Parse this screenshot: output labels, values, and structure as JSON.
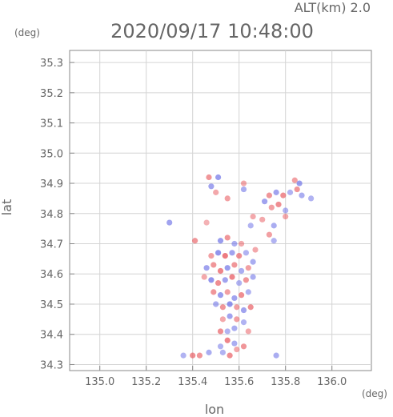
{
  "header": {
    "altitude": "ALT(km) 2.0",
    "datetime": "2020/09/17 10:48:00",
    "y_unit": "(deg)",
    "x_unit": "(deg)"
  },
  "chart_data": {
    "type": "scatter",
    "title": "2020/09/17 10:48:00",
    "xlabel": "lon",
    "ylabel": "lat",
    "xlim": [
      134.87,
      136.17
    ],
    "ylim": [
      34.28,
      35.34
    ],
    "xticks": [
      135.0,
      135.2,
      135.4,
      135.6,
      135.8,
      136.0
    ],
    "yticks": [
      34.3,
      34.4,
      34.5,
      34.6,
      34.7,
      34.8,
      34.9,
      35.0,
      35.1,
      35.2,
      35.3
    ],
    "xtick_labels": [
      "135.0",
      "135.2",
      "135.4",
      "135.6",
      "135.8",
      "136.0"
    ],
    "ytick_labels": [
      "34.3",
      "34.4",
      "34.5",
      "34.6",
      "34.7",
      "34.8",
      "34.9",
      "35.0",
      "35.1",
      "35.2",
      "35.3"
    ],
    "grid": true,
    "colors": {
      "positive": "#e8585e",
      "negative": "#6a6ee6",
      "frame": "#888888"
    },
    "series": [
      {
        "values": [
          [
            135.47,
            34.92,
            0.5
          ],
          [
            135.51,
            34.92,
            -0.6
          ],
          [
            135.62,
            34.9,
            0.3
          ],
          [
            135.62,
            34.88,
            -0.4
          ],
          [
            135.5,
            34.87,
            0.3
          ],
          [
            135.48,
            34.89,
            -0.5
          ],
          [
            135.55,
            34.85,
            0.4
          ],
          [
            135.73,
            34.86,
            0.5
          ],
          [
            135.76,
            34.87,
            -0.5
          ],
          [
            135.79,
            34.86,
            0.6
          ],
          [
            135.82,
            34.87,
            -0.3
          ],
          [
            135.84,
            34.91,
            0.4
          ],
          [
            135.86,
            34.9,
            -0.6
          ],
          [
            135.85,
            34.88,
            0.5
          ],
          [
            135.87,
            34.86,
            -0.4
          ],
          [
            135.71,
            34.84,
            -0.5
          ],
          [
            135.74,
            34.82,
            0.4
          ],
          [
            135.77,
            34.83,
            0.6
          ],
          [
            135.8,
            34.81,
            -0.3
          ],
          [
            135.91,
            34.85,
            -0.3
          ],
          [
            135.7,
            34.78,
            0.3
          ],
          [
            135.75,
            34.76,
            -0.4
          ],
          [
            135.8,
            34.79,
            0.3
          ],
          [
            135.73,
            34.73,
            0.4
          ],
          [
            135.75,
            34.71,
            -0.3
          ],
          [
            135.66,
            34.79,
            0.3
          ],
          [
            135.65,
            34.76,
            -0.3
          ],
          [
            135.46,
            34.77,
            0.2
          ],
          [
            135.3,
            34.77,
            -0.5
          ],
          [
            135.41,
            34.71,
            0.5
          ],
          [
            135.52,
            34.71,
            -0.6
          ],
          [
            135.55,
            34.72,
            0.5
          ],
          [
            135.58,
            34.7,
            -0.4
          ],
          [
            135.61,
            34.7,
            0.3
          ],
          [
            135.48,
            34.66,
            0.4
          ],
          [
            135.51,
            34.67,
            -0.7
          ],
          [
            135.54,
            34.66,
            0.8
          ],
          [
            135.57,
            34.67,
            -0.5
          ],
          [
            135.6,
            34.66,
            0.6
          ],
          [
            135.63,
            34.67,
            -0.3
          ],
          [
            135.67,
            34.68,
            0.3
          ],
          [
            135.66,
            34.64,
            -0.4
          ],
          [
            135.46,
            34.62,
            -0.5
          ],
          [
            135.49,
            34.63,
            0.5
          ],
          [
            135.52,
            34.61,
            0.7
          ],
          [
            135.55,
            34.62,
            -0.6
          ],
          [
            135.58,
            34.63,
            0.5
          ],
          [
            135.61,
            34.61,
            -0.4
          ],
          [
            135.64,
            34.62,
            0.4
          ],
          [
            135.45,
            34.59,
            0.3
          ],
          [
            135.48,
            34.58,
            -0.7
          ],
          [
            135.51,
            34.57,
            0.6
          ],
          [
            135.54,
            34.58,
            -0.5
          ],
          [
            135.57,
            34.59,
            0.7
          ],
          [
            135.6,
            34.57,
            -0.3
          ],
          [
            135.63,
            34.58,
            0.5
          ],
          [
            135.66,
            34.59,
            -0.4
          ],
          [
            135.49,
            34.54,
            0.5
          ],
          [
            135.52,
            34.53,
            -0.6
          ],
          [
            135.55,
            34.54,
            0.4
          ],
          [
            135.58,
            34.52,
            -0.5
          ],
          [
            135.61,
            34.53,
            0.6
          ],
          [
            135.64,
            34.54,
            -0.3
          ],
          [
            135.5,
            34.5,
            -0.4
          ],
          [
            135.53,
            34.49,
            0.5
          ],
          [
            135.56,
            34.5,
            -0.7
          ],
          [
            135.59,
            34.49,
            0.4
          ],
          [
            135.62,
            34.48,
            -0.5
          ],
          [
            135.65,
            34.49,
            0.6
          ],
          [
            135.53,
            34.45,
            0.3
          ],
          [
            135.56,
            34.46,
            -0.5
          ],
          [
            135.59,
            34.45,
            0.4
          ],
          [
            135.62,
            34.44,
            -0.3
          ],
          [
            135.58,
            34.42,
            -0.4
          ],
          [
            135.64,
            34.41,
            0.3
          ],
          [
            135.52,
            34.41,
            0.6
          ],
          [
            135.55,
            34.41,
            -0.3
          ],
          [
            135.55,
            34.38,
            0.7
          ],
          [
            135.58,
            34.37,
            -0.4
          ],
          [
            135.62,
            34.36,
            0.5
          ],
          [
            135.52,
            34.36,
            -0.3
          ],
          [
            135.4,
            34.33,
            0.6
          ],
          [
            135.43,
            34.33,
            0.5
          ],
          [
            135.47,
            34.34,
            -0.4
          ],
          [
            135.56,
            34.33,
            0.6
          ],
          [
            135.53,
            34.34,
            -0.3
          ],
          [
            135.76,
            34.33,
            -0.4
          ],
          [
            135.59,
            34.35,
            0.3
          ],
          [
            135.36,
            34.33,
            -0.3
          ]
        ]
      }
    ]
  }
}
